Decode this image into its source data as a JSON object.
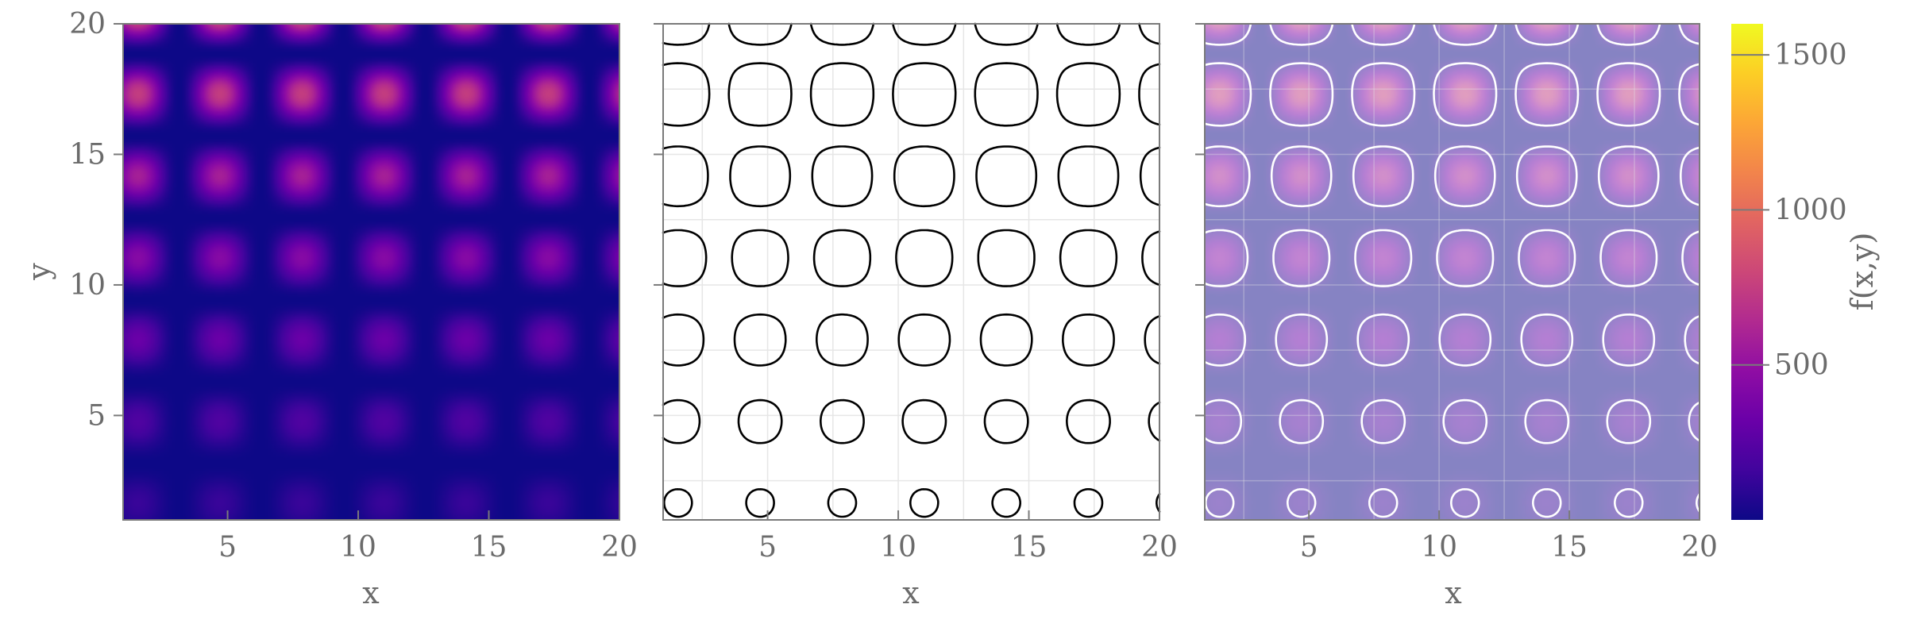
{
  "chart_data": [
    {
      "type": "heatmap",
      "panel": "heatmap",
      "function": "f(x,y) = ((y + 10) * |sin(x) * sin(y)|)^2",
      "x_range": [
        1,
        20
      ],
      "y_range": [
        1,
        20
      ],
      "xlabel": "x",
      "ylabel": "y",
      "xticks": [
        5,
        10,
        15,
        20
      ],
      "yticks": [
        5,
        10,
        15,
        20
      ],
      "colormap": "plasma",
      "grid": false
    },
    {
      "type": "contour",
      "panel": "contour",
      "function": "f(x,y) = ((y + 10) * |sin(x) * sin(y)|)^2",
      "contour_levels": [
        100
      ],
      "line_color": "#000000",
      "x_range": [
        1,
        20
      ],
      "y_range": [
        1,
        20
      ],
      "xlabel": "x",
      "xticks": [
        5,
        10,
        15,
        20
      ],
      "grid": true
    },
    {
      "type": "heatmap",
      "panel": "heatmap-with-contour-overlay",
      "function": "f(x,y) = ((y + 10) * |sin(x) * sin(y)|)^2",
      "overlay_opacity": 0.5,
      "contour_levels": [
        100
      ],
      "line_color": "#ffffff",
      "x_range": [
        1,
        20
      ],
      "y_range": [
        1,
        20
      ],
      "xlabel": "x",
      "xticks": [
        5,
        10,
        15,
        20
      ],
      "grid": true
    }
  ],
  "colorbar": {
    "label": "f(x,y)",
    "range": [
      0,
      1600
    ],
    "ticks": [
      500,
      1000,
      1500
    ],
    "colormap": "plasma"
  },
  "labels": {
    "x": "x",
    "y": "y",
    "colorbar": "f(x,y)"
  },
  "colors": {
    "axis": "#7a7a7a",
    "text": "#6b6b6b",
    "grid": "#e6e6e6"
  }
}
